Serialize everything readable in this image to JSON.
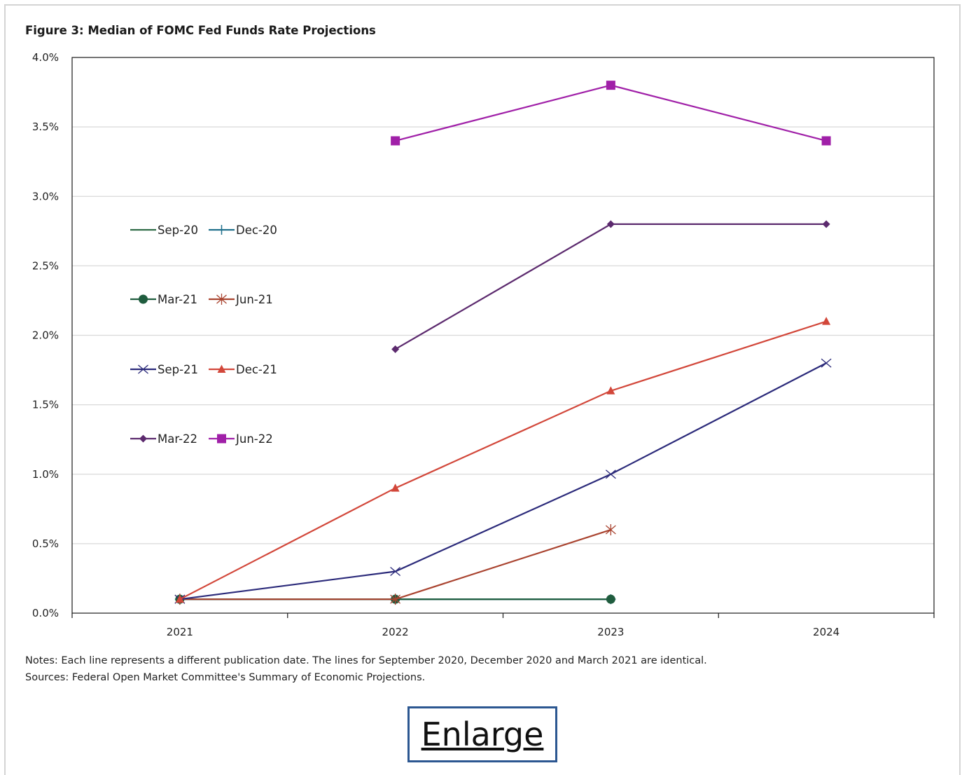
{
  "enlarge_label": "Enlarge",
  "chart_data": {
    "type": "line",
    "title": "Figure 3: Median of FOMC Fed Funds Rate Projections",
    "x": [
      2021,
      2022,
      2023,
      2024
    ],
    "x_tick_labels": [
      "2021",
      "2022",
      "2023",
      "2024"
    ],
    "ylim": [
      0,
      4.0
    ],
    "y_tick_labels": [
      "0.0%",
      "0.5%",
      "1.0%",
      "1.5%",
      "2.0%",
      "2.5%",
      "3.0%",
      "3.5%",
      "4.0%"
    ],
    "grid": "horizontal",
    "legend_position": "left",
    "series": [
      {
        "name": "Sep-20",
        "color": "#2e6b46",
        "marker": "none",
        "values": [
          0.1,
          0.1,
          0.1,
          null
        ]
      },
      {
        "name": "Dec-20",
        "color": "#1f6f8b",
        "marker": "plus",
        "values": [
          0.1,
          0.1,
          0.1,
          null
        ]
      },
      {
        "name": "Mar-21",
        "color": "#1f5c3e",
        "marker": "circle",
        "values": [
          0.1,
          0.1,
          0.1,
          null
        ]
      },
      {
        "name": "Jun-21",
        "color": "#a9432f",
        "marker": "star",
        "values": [
          0.1,
          0.1,
          0.6,
          null
        ]
      },
      {
        "name": "Sep-21",
        "color": "#2b2a7a",
        "marker": "x",
        "values": [
          0.1,
          0.3,
          1.0,
          1.8
        ]
      },
      {
        "name": "Dec-21",
        "color": "#d2473a",
        "marker": "triangle",
        "values": [
          0.1,
          0.9,
          1.6,
          2.1
        ]
      },
      {
        "name": "Mar-22",
        "color": "#5c2a6e",
        "marker": "diamond",
        "values": [
          null,
          1.9,
          2.8,
          2.8
        ]
      },
      {
        "name": "Jun-22",
        "color": "#a020a8",
        "marker": "square",
        "values": [
          null,
          3.4,
          3.8,
          3.4
        ]
      }
    ],
    "notes": [
      "Notes: Each line represents a different publication date. The lines for September 2020, December 2020 and March 2021  are identical.",
      "Sources: Federal Open Market Committee's Summary of Economic Projections."
    ]
  }
}
